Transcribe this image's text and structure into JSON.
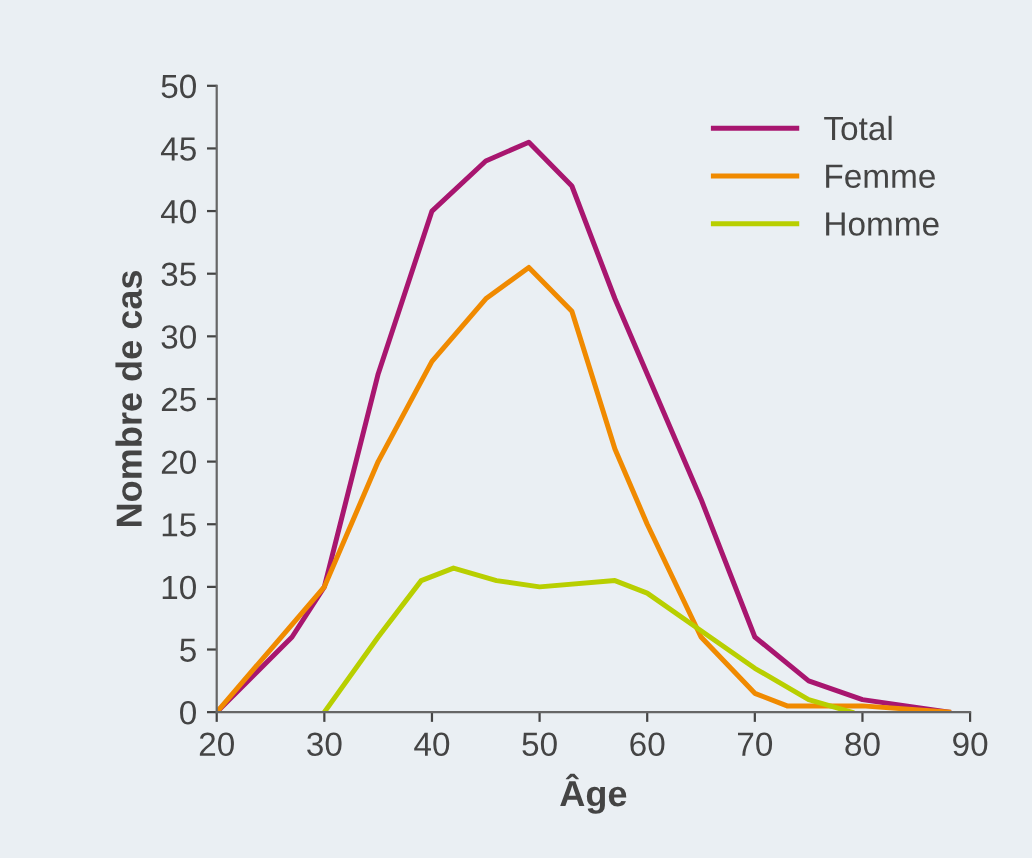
{
  "chart_data": {
    "type": "line",
    "xlabel": "Âge",
    "ylabel": "Nombre de cas",
    "xlim": [
      20,
      90
    ],
    "ylim": [
      0,
      50
    ],
    "xticks": [
      20,
      30,
      40,
      50,
      60,
      70,
      80,
      90
    ],
    "yticks": [
      0,
      5,
      10,
      15,
      20,
      25,
      30,
      35,
      40,
      45,
      50
    ],
    "grid": false,
    "legend": "top right",
    "marker": "none",
    "line_style": "solid",
    "series": [
      {
        "name": "Total",
        "color": "#a8166f",
        "x": [
          20,
          27,
          30,
          35,
          40,
          45,
          49,
          53,
          57,
          60,
          65,
          70,
          75,
          80,
          88
        ],
        "values": [
          0,
          6,
          10,
          27,
          40,
          44,
          45.5,
          42,
          33,
          27,
          17,
          6,
          2.5,
          1,
          0
        ]
      },
      {
        "name": "Femme",
        "color": "#f08a00",
        "x": [
          20,
          25,
          30,
          35,
          40,
          45,
          49,
          53,
          57,
          60,
          65,
          70,
          73,
          80,
          88
        ],
        "values": [
          0,
          5,
          10,
          20,
          28,
          33,
          35.5,
          32,
          21,
          15,
          6,
          1.5,
          0.5,
          0.5,
          0
        ]
      },
      {
        "name": "Homme",
        "color": "#b8cf00",
        "x": [
          30,
          35,
          39,
          42,
          46,
          50,
          57,
          60,
          65,
          70,
          75,
          79
        ],
        "values": [
          0,
          6,
          10.5,
          11.5,
          10.5,
          10,
          10.5,
          9.5,
          6.5,
          3.5,
          1,
          0
        ]
      }
    ]
  }
}
